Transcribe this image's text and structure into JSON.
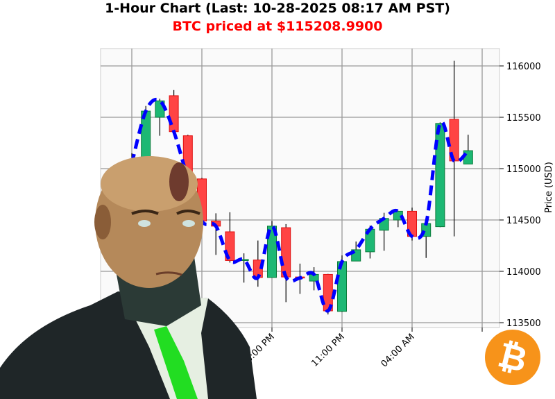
{
  "title": "1-Hour Chart (Last: 10-28-2025 08:17 AM PST)",
  "subtitle": "BTC priced at $115208.9900",
  "colors": {
    "up": "#1db874",
    "down": "#ff4444",
    "line": "#0000ff",
    "subtitle": "#ff0000",
    "bitcoin": "#f7931a"
  },
  "icons": {
    "logo": "bitcoin-logo",
    "overlay": "suited-character-portrait"
  },
  "chart_data": {
    "type": "candlestick",
    "ylabel": "Price (USD)",
    "ylim": [
      113450,
      116170
    ],
    "yticks": [
      113500,
      114000,
      114500,
      115000,
      115500,
      116000
    ],
    "xtick_labels": [
      {
        "label": "06:00 PM",
        "hour_index": 10
      },
      {
        "label": "11:00 PM",
        "hour_index": 15
      },
      {
        "label": "04:00 AM",
        "hour_index": 20
      }
    ],
    "grid": true,
    "overlay_line": "close, dashed",
    "candles": [
      {
        "t": "08:00 AM",
        "o": 114900,
        "h": 115150,
        "l": 114850,
        "c": 115050
      },
      {
        "t": "09:00 AM",
        "o": 115050,
        "h": 115610,
        "l": 115000,
        "c": 115560
      },
      {
        "t": "10:00 AM",
        "o": 115500,
        "h": 115680,
        "l": 115320,
        "c": 115660
      },
      {
        "t": "11:00 AM",
        "o": 115710,
        "h": 115765,
        "l": 115350,
        "c": 115360
      },
      {
        "t": "12:00 PM",
        "o": 115320,
        "h": 115330,
        "l": 114880,
        "c": 114900
      },
      {
        "t": "01:00 PM",
        "o": 114900,
        "h": 114910,
        "l": 114450,
        "c": 114490
      },
      {
        "t": "02:00 PM",
        "o": 114490,
        "h": 114565,
        "l": 114160,
        "c": 114440
      },
      {
        "t": "03:00 PM",
        "o": 114385,
        "h": 114575,
        "l": 114085,
        "c": 114105
      },
      {
        "t": "04:00 PM",
        "o": 114105,
        "h": 114175,
        "l": 113890,
        "c": 114115
      },
      {
        "t": "05:00 PM",
        "o": 114110,
        "h": 114300,
        "l": 113850,
        "c": 113940
      },
      {
        "t": "06:00 PM",
        "o": 113940,
        "h": 114490,
        "l": 113940,
        "c": 114440
      },
      {
        "t": "07:00 PM",
        "o": 114425,
        "h": 114460,
        "l": 113700,
        "c": 113945
      },
      {
        "t": "08:00 PM",
        "o": 113945,
        "h": 114075,
        "l": 113780,
        "c": 113935
      },
      {
        "t": "09:00 PM",
        "o": 113905,
        "h": 114040,
        "l": 113815,
        "c": 113970
      },
      {
        "t": "10:00 PM",
        "o": 113970,
        "h": 113975,
        "l": 113580,
        "c": 113615
      },
      {
        "t": "11:00 PM",
        "o": 113610,
        "h": 114155,
        "l": 113605,
        "c": 114095
      },
      {
        "t": "12:00 AM",
        "o": 114100,
        "h": 114290,
        "l": 114100,
        "c": 114210
      },
      {
        "t": "01:00 AM",
        "o": 114190,
        "h": 114445,
        "l": 114125,
        "c": 114410
      },
      {
        "t": "02:00 AM",
        "o": 114400,
        "h": 114570,
        "l": 114200,
        "c": 114515
      },
      {
        "t": "03:00 AM",
        "o": 114500,
        "h": 114590,
        "l": 114430,
        "c": 114585
      },
      {
        "t": "04:00 AM",
        "o": 114585,
        "h": 114620,
        "l": 114300,
        "c": 114340
      },
      {
        "t": "05:00 AM",
        "o": 114340,
        "h": 114470,
        "l": 114130,
        "c": 114465
      },
      {
        "t": "06:00 AM",
        "o": 114435,
        "h": 115450,
        "l": 114430,
        "c": 115440
      },
      {
        "t": "07:00 AM",
        "o": 115480,
        "h": 116050,
        "l": 114340,
        "c": 115075
      },
      {
        "t": "08:00 AM",
        "o": 115045,
        "h": 115330,
        "l": 115045,
        "c": 115175
      }
    ]
  }
}
